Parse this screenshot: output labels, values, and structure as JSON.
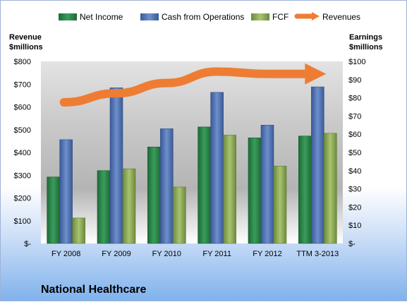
{
  "chart_data": {
    "type": "bar",
    "title": "National Healthcare",
    "categories": [
      "FY 2008",
      "FY 2009",
      "FY 2010",
      "FY 2011",
      "FY 2012",
      "TTM 3-2013"
    ],
    "left_axis": {
      "title_line1": "Revenue",
      "title_line2": "$millions",
      "range": [
        0,
        800
      ],
      "ticks": [
        "$-",
        "$100",
        "$200",
        "$300",
        "$400",
        "$500",
        "$600",
        "$700",
        "$800"
      ]
    },
    "right_axis": {
      "title_line1": "Earnings",
      "title_line2": "$millions",
      "range": [
        0,
        100
      ],
      "ticks": [
        "$-",
        "$10",
        "$20",
        "$30",
        "$40",
        "$50",
        "$60",
        "$70",
        "$80",
        "$90",
        "$100"
      ]
    },
    "series": [
      {
        "name": "Net Income",
        "axis": "right",
        "kind": "bar",
        "color": "#2e8b4e",
        "values": [
          36.5,
          40,
          53,
          64,
          58,
          59
        ]
      },
      {
        "name": "Cash from Operations",
        "axis": "right",
        "kind": "bar",
        "color": "#4f73b3",
        "values": [
          57,
          85.5,
          63,
          83,
          65,
          86
        ]
      },
      {
        "name": "FCF",
        "axis": "right",
        "kind": "bar",
        "color": "#8aa857",
        "values": [
          14,
          41,
          31,
          59.5,
          42.5,
          60.5
        ]
      },
      {
        "name": "Revenues",
        "axis": "left",
        "kind": "arrow-line",
        "color": "#ee7d33",
        "values": [
          620,
          660,
          705,
          755,
          745,
          745
        ]
      }
    ],
    "grid": false,
    "legend_position": "top"
  }
}
